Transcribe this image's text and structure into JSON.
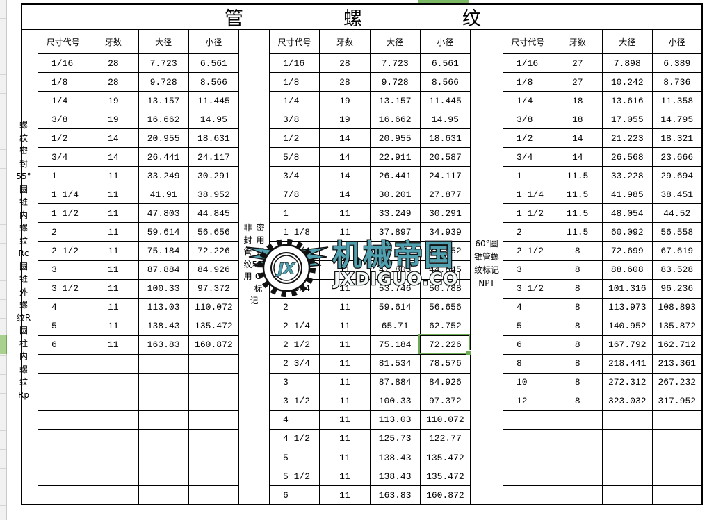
{
  "title": {
    "text": "管螺纹",
    "chars": [
      "管",
      "螺",
      "纹"
    ]
  },
  "selection": {
    "table": "middle",
    "row_code": "2 1/2",
    "column": "小径",
    "value": "72.226",
    "accent_green": "#6cab53",
    "row_header_green": "#a9d08e",
    "col_header_green": "#7cb964"
  },
  "watermark": {
    "brand": "机械帝国",
    "domain": "JXDIGUO.COM",
    "logo_monogram": "JX",
    "teal": "#4f9fae",
    "outline": "#111111"
  },
  "tables": [
    {
      "id": "left",
      "side_label": {
        "full": "螺纹密封55°圆锥内螺纹Rc 圆锥外螺纹R 圆柱内螺纹Rp",
        "lines": [
          "螺纹密",
          "封55°",
          "圆锥内",
          "螺纹",
          "Rc 圆",
          "锥外螺",
          "纹R 圆",
          "柱内螺",
          "纹Rp"
        ]
      },
      "headers": [
        "尺寸代号",
        "牙数",
        "大径",
        "小径"
      ],
      "rows": [
        [
          "1/16",
          "28",
          "7.723",
          "6.561"
        ],
        [
          "1/8",
          "28",
          "9.728",
          "8.566"
        ],
        [
          "1/4",
          "19",
          "13.157",
          "11.445"
        ],
        [
          "3/8",
          "19",
          "16.662",
          "14.95"
        ],
        [
          "1/2",
          "14",
          "20.955",
          "18.631"
        ],
        [
          "3/4",
          "14",
          "26.441",
          "24.117"
        ],
        [
          "1",
          "11",
          "33.249",
          "30.291"
        ],
        [
          "1 1/4",
          "11",
          "41.91",
          "38.952"
        ],
        [
          "1 1/2",
          "11",
          "47.803",
          "44.845"
        ],
        [
          "2",
          "11",
          "59.614",
          "56.656"
        ],
        [
          "2 1/2",
          "11",
          "75.184",
          "72.226"
        ],
        [
          "3",
          "11",
          "87.884",
          "84.926"
        ],
        [
          "3 1/2",
          "11",
          "100.33",
          "97.372"
        ],
        [
          "4",
          "11",
          "113.03",
          "110.072"
        ],
        [
          "5",
          "11",
          "138.43",
          "135.472"
        ],
        [
          "6",
          "11",
          "163.83",
          "160.872"
        ]
      ],
      "empty_rows": 8
    },
    {
      "id": "middle",
      "side_label": {
        "full": "非密封用管螺纹55°用G标记",
        "justified_lines": [
          [
            "非",
            "密"
          ],
          [
            "封",
            "用"
          ],
          [
            "管",
            "螺"
          ],
          [
            "纹",
            "55°"
          ],
          [
            "用",
            "G标"
          ],
          [
            "记"
          ]
        ]
      },
      "headers": [
        "尺寸代号",
        "牙数",
        "大径",
        "小径"
      ],
      "rows": [
        [
          "1/16",
          "28",
          "7.723",
          "6.561"
        ],
        [
          "1/8",
          "28",
          "9.728",
          "8.566"
        ],
        [
          "1/4",
          "19",
          "13.157",
          "11.445"
        ],
        [
          "3/8",
          "19",
          "16.662",
          "14.95"
        ],
        [
          "1/2",
          "14",
          "20.955",
          "18.631"
        ],
        [
          "5/8",
          "14",
          "22.911",
          "20.587"
        ],
        [
          "3/4",
          "14",
          "26.441",
          "24.117"
        ],
        [
          "7/8",
          "14",
          "30.201",
          "27.877"
        ],
        [
          "1",
          "11",
          "33.249",
          "30.291"
        ],
        [
          "1 1/8",
          "11",
          "37.897",
          "34.939"
        ],
        [
          "1 1/4",
          "11",
          "41.91",
          "38.952"
        ],
        [
          "1 1/2",
          "11",
          "47.803",
          "44.845"
        ],
        [
          "1 3/4",
          "11",
          "53.746",
          "50.788"
        ],
        [
          "2",
          "11",
          "59.614",
          "56.656"
        ],
        [
          "2 1/4",
          "11",
          "65.71",
          "62.752"
        ],
        [
          "2 1/2",
          "11",
          "75.184",
          "72.226"
        ],
        [
          "2 3/4",
          "11",
          "81.534",
          "78.576"
        ],
        [
          "3",
          "11",
          "87.884",
          "84.926"
        ],
        [
          "3 1/2",
          "11",
          "100.33",
          "97.372"
        ],
        [
          "4",
          "11",
          "113.03",
          "110.072"
        ],
        [
          "4 1/2",
          "11",
          "125.73",
          "122.77"
        ],
        [
          "5",
          "11",
          "138.43",
          "135.472"
        ],
        [
          "5 1/2",
          "11",
          "138.43",
          "135.472"
        ],
        [
          "6",
          "11",
          "163.83",
          "160.872"
        ]
      ],
      "empty_rows": 0
    },
    {
      "id": "right",
      "side_label": {
        "full": "60°圆锥管螺纹标记NPT",
        "lines": [
          "60°圆",
          "锥管螺",
          "纹标记",
          "NPT"
        ]
      },
      "headers": [
        "尺寸代号",
        "牙数",
        "大径",
        "小径"
      ],
      "rows": [
        [
          "1/16",
          "27",
          "7.898",
          "6.389"
        ],
        [
          "1/8",
          "27",
          "10.242",
          "8.736"
        ],
        [
          "1/4",
          "18",
          "13.616",
          "11.358"
        ],
        [
          "3/8",
          "18",
          "17.055",
          "14.795"
        ],
        [
          "1/2",
          "14",
          "21.223",
          "18.321"
        ],
        [
          "3/4",
          "14",
          "26.568",
          "23.666"
        ],
        [
          "1",
          "11.5",
          "33.228",
          "29.694"
        ],
        [
          "1 1/4",
          "11.5",
          "41.985",
          "38.451"
        ],
        [
          "1 1/2",
          "11.5",
          "48.054",
          "44.52"
        ],
        [
          "2",
          "11.5",
          "60.092",
          "56.558"
        ],
        [
          "2 1/2",
          "8",
          "72.699",
          "67.619"
        ],
        [
          "3",
          "8",
          "88.608",
          "83.528"
        ],
        [
          "3 1/2",
          "8",
          "101.316",
          "96.236"
        ],
        [
          "4",
          "8",
          "113.973",
          "108.893"
        ],
        [
          "5",
          "8",
          "140.952",
          "135.872"
        ],
        [
          "6",
          "8",
          "167.792",
          "162.712"
        ],
        [
          "8",
          "8",
          "218.441",
          "213.361"
        ],
        [
          "10",
          "8",
          "272.312",
          "267.232"
        ],
        [
          "12",
          "8",
          "323.032",
          "317.952"
        ]
      ],
      "empty_rows": 5
    }
  ]
}
